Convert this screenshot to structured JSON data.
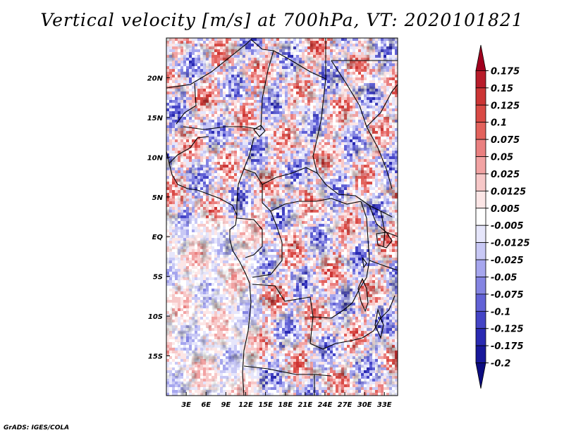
{
  "title": "Vertical velocity [m/s] at 700hPa, VT: 2020101821",
  "credit": "GrADS: IGES/COLA",
  "map": {
    "lon_range": [
      0,
      35
    ],
    "lat_range": [
      -20,
      25
    ],
    "lat_ticks": [
      "20N",
      "15N",
      "10N",
      "5N",
      "EQ",
      "5S",
      "10S",
      "15S"
    ],
    "lat_values": [
      20,
      15,
      10,
      5,
      0,
      -5,
      -10,
      -15
    ],
    "lon_ticks": [
      "3E",
      "6E",
      "9E",
      "12E",
      "15E",
      "18E",
      "21E",
      "24E",
      "27E",
      "30E",
      "33E"
    ],
    "lon_values": [
      3,
      6,
      9,
      12,
      15,
      18,
      21,
      24,
      27,
      30,
      33
    ]
  },
  "colorbar": {
    "labels": [
      "0.175",
      "0.15",
      "0.125",
      "0.1",
      "0.075",
      "0.05",
      "0.025",
      "0.0125",
      "0.005",
      "-0.005",
      "-0.0125",
      "-0.025",
      "-0.05",
      "-0.075",
      "-0.1",
      "-0.125",
      "-0.175",
      "-0.2"
    ],
    "colors": [
      "#a0001e",
      "#b81c2a",
      "#cc3535",
      "#d94a45",
      "#e3625c",
      "#ea8080",
      "#f2a3a3",
      "#f7c8c8",
      "#fce6e6",
      "#ffffff",
      "#e6e6fb",
      "#c8c8f5",
      "#a6a6ee",
      "#8484e2",
      "#6262d6",
      "#4444c6",
      "#2a2ab2",
      "#18189a",
      "#0c0c80"
    ]
  }
}
